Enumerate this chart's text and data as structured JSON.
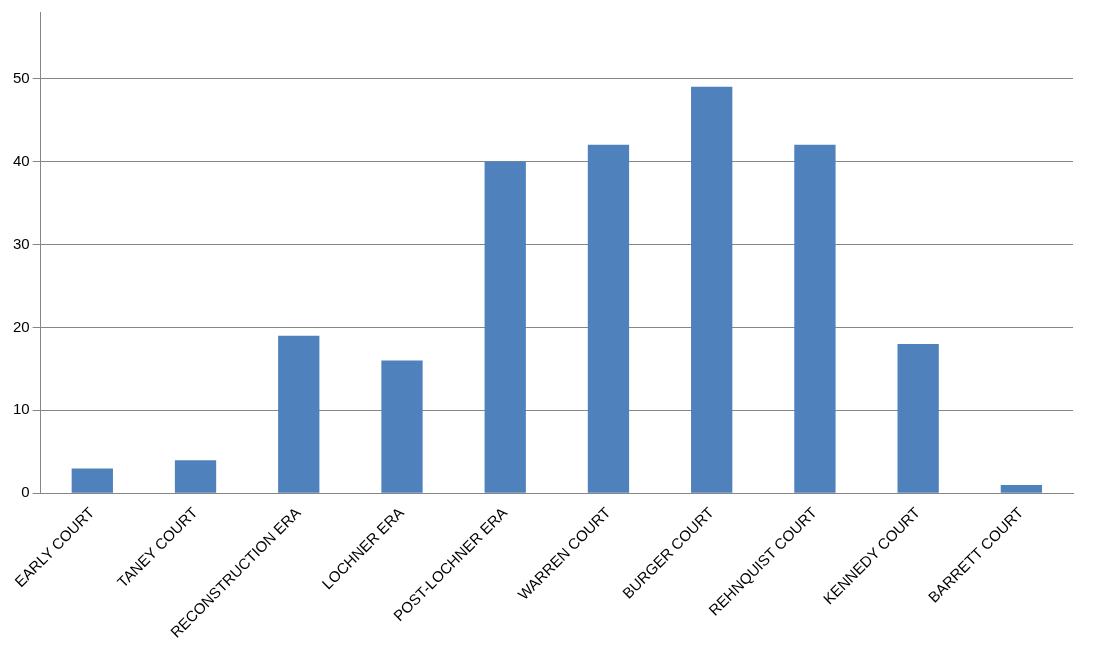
{
  "chart_data": {
    "type": "bar",
    "categories": [
      "EARLY COURT",
      "TANEY COURT",
      "RECONSTRUCTION ERA",
      "LOCHNER ERA",
      "POST-LOCHNER ERA",
      "WARREN COURT",
      "BURGER COURT",
      "REHNQUIST COURT",
      "KENNEDY COURT",
      "BARRETT COURT"
    ],
    "values": [
      3,
      4,
      19,
      16,
      40,
      42,
      49,
      42,
      18,
      1
    ],
    "color": "#4f81bd",
    "ylim": [
      0,
      58
    ],
    "yticks": [
      0,
      10,
      20,
      30,
      40,
      50
    ],
    "grid": "y"
  }
}
